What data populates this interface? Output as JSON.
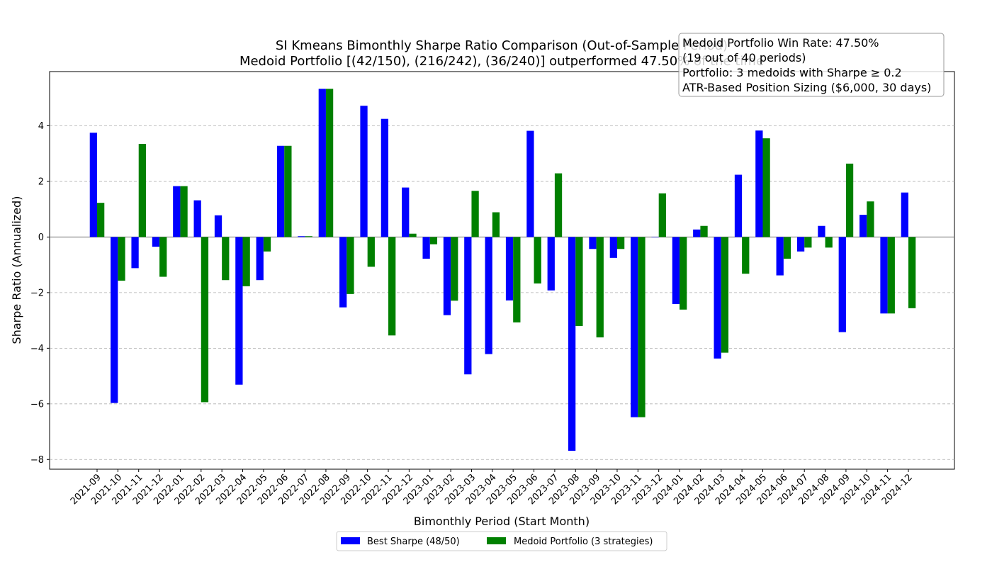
{
  "chart_data": {
    "type": "bar",
    "title": "SI Kmeans Bimonthly Sharpe Ratio Comparison (Out-of-Sample Period)",
    "subtitle": "Medoid Portfolio [(42/150), (216/242), (36/240)] outperformed 47.50% of the time",
    "xlabel": "Bimonthly Period (Start Month)",
    "ylabel": "Sharpe Ratio (Annualized)",
    "ylim": [
      -8.35,
      5.95
    ],
    "yticks": [
      4,
      2,
      0,
      -2,
      -4,
      -6,
      -8
    ],
    "grid": true,
    "legend_position": "bottom-center",
    "categories": [
      "2021-09",
      "2021-10",
      "2021-11",
      "2021-12",
      "2022-01",
      "2022-02",
      "2022-03",
      "2022-04",
      "2022-05",
      "2022-06",
      "2022-07",
      "2022-08",
      "2022-09",
      "2022-10",
      "2022-11",
      "2022-12",
      "2023-01",
      "2023-02",
      "2023-03",
      "2023-04",
      "2023-05",
      "2023-06",
      "2023-07",
      "2023-08",
      "2023-09",
      "2023-10",
      "2023-11",
      "2023-12",
      "2024-01",
      "2024-02",
      "2024-03",
      "2024-04",
      "2024-05",
      "2024-06",
      "2024-07",
      "2024-08",
      "2024-09",
      "2024-10",
      "2024-11",
      "2024-12"
    ],
    "series": [
      {
        "name": "Best Sharpe (48/50)",
        "color": "#0000ff",
        "values": [
          3.75,
          -5.97,
          -1.12,
          -0.35,
          1.83,
          1.32,
          0.78,
          -5.31,
          -1.55,
          3.28,
          0.03,
          5.33,
          -2.53,
          4.72,
          4.25,
          1.78,
          -0.78,
          -2.81,
          -4.94,
          -4.21,
          -2.28,
          3.82,
          -1.92,
          -7.69,
          -0.43,
          -0.75,
          -6.48,
          0.0,
          -2.41,
          0.27,
          -4.37,
          2.24,
          3.83,
          -1.38,
          -0.52,
          0.4,
          -3.42,
          0.8,
          -2.75,
          1.6
        ]
      },
      {
        "name": "Medoid Portfolio (3 strategies)",
        "color": "#008000",
        "values": [
          1.23,
          -1.57,
          3.35,
          -1.43,
          1.83,
          -5.94,
          -1.55,
          -1.77,
          -0.52,
          3.28,
          0.03,
          5.33,
          -2.05,
          -1.07,
          -3.54,
          0.12,
          -0.26,
          -2.29,
          1.66,
          0.89,
          -3.07,
          -1.67,
          2.29,
          -3.2,
          -3.61,
          -0.43,
          -6.48,
          1.57,
          -2.61,
          0.4,
          -4.16,
          -1.32,
          3.55,
          -0.78,
          -0.38,
          -0.38,
          2.64,
          1.28,
          -2.75,
          -2.56
        ]
      }
    ],
    "annotation_lines": [
      "Medoid Portfolio Win Rate: 47.50%",
      "(19 out of 40 periods)",
      "Portfolio: 3 medoids with Sharpe ≥ 0.2",
      "ATR-Based Position Sizing ($6,000, 30 days)"
    ]
  }
}
